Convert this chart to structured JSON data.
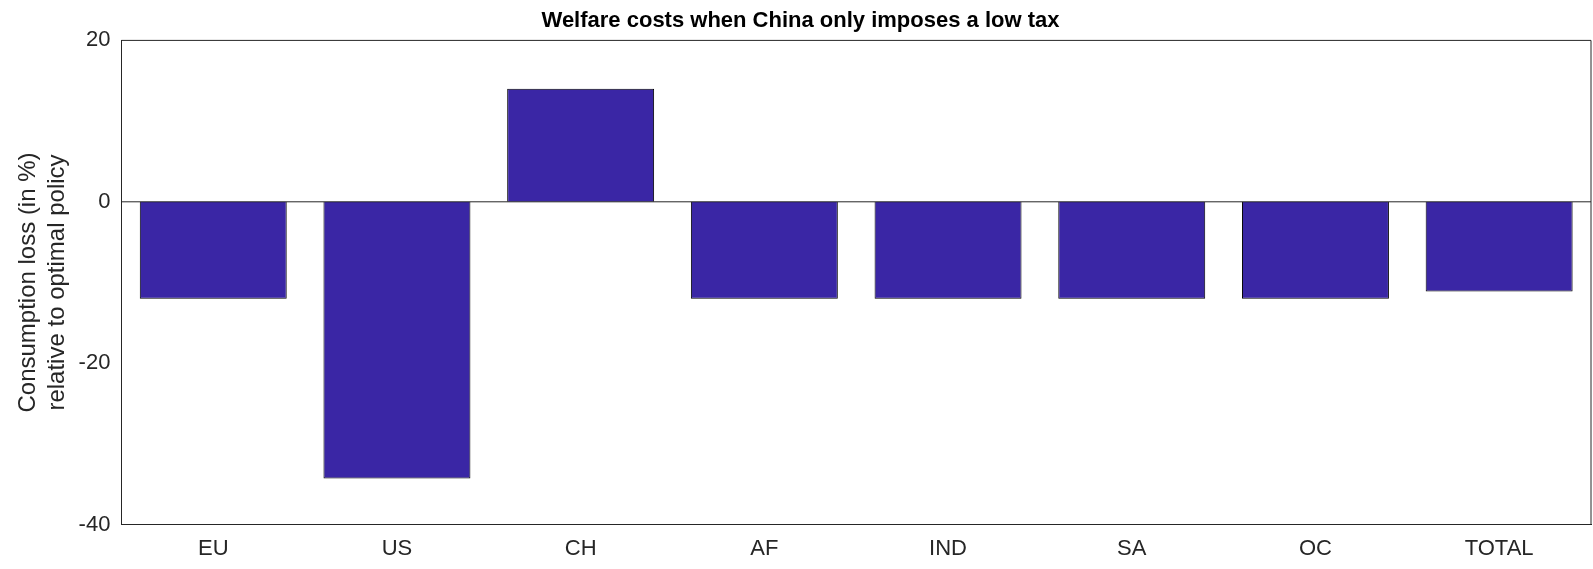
{
  "chart_data": {
    "type": "bar",
    "title": "Welfare costs when China only imposes a low tax",
    "ylabel": "Consumption loss (in %)\nrelative to optimal policy",
    "categories": [
      "EU",
      "US",
      "CH",
      "AF",
      "IND",
      "SA",
      "OC",
      "TOTAL"
    ],
    "values": [
      -12,
      -34.3,
      14,
      -12,
      -12,
      -12,
      -12,
      -11.1
    ],
    "color": "#3a26a5",
    "ylim": [
      -40,
      20
    ],
    "yticks": [
      -40,
      -20,
      0,
      20
    ],
    "grid": false,
    "ref_lines": [
      {
        "axis": "y",
        "value": 0,
        "color": "#262626"
      }
    ]
  }
}
